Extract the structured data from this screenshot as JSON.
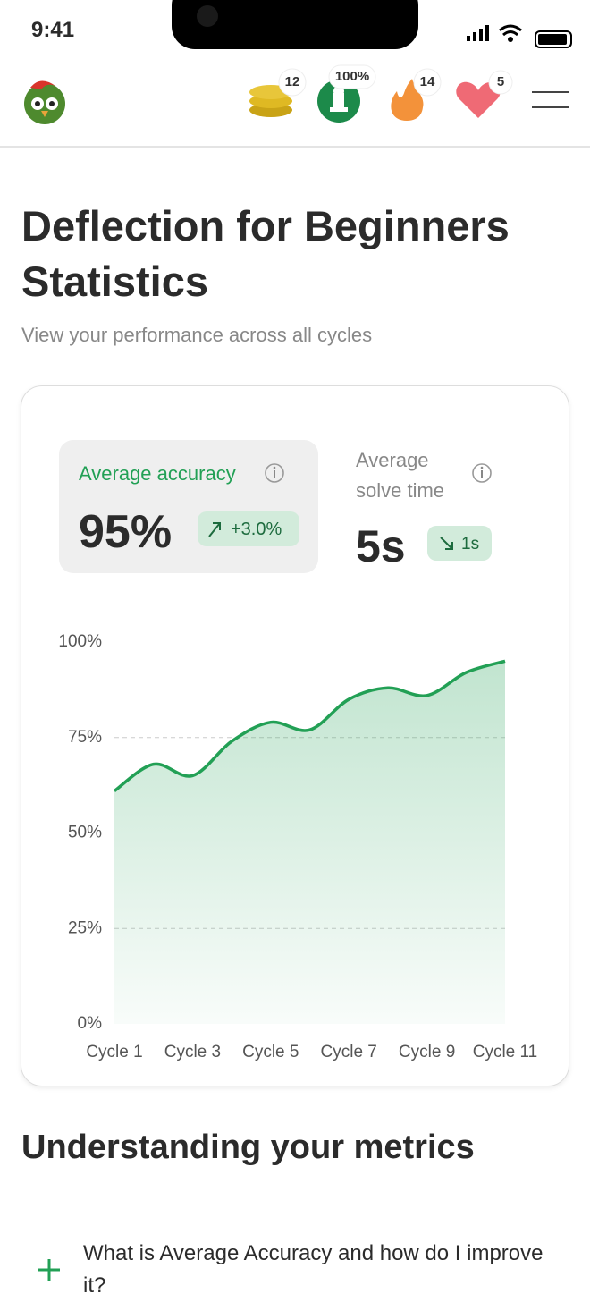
{
  "status_bar": {
    "time": "9:41"
  },
  "header": {
    "badges": [
      "12",
      "100%",
      "14",
      "5"
    ]
  },
  "page": {
    "title": "Deflection for Beginners Statistics",
    "subtitle": "View your performance across all cycles"
  },
  "stats": [
    {
      "label": "Average accuracy",
      "value": "95%",
      "change": "+3.0%"
    },
    {
      "label": "Average solve time",
      "value": "5s",
      "change": "1s"
    }
  ],
  "chart_data": {
    "type": "line",
    "categories": [
      "Cycle 1",
      null,
      "Cycle 3",
      null,
      "Cycle 5",
      null,
      "Cycle 7",
      null,
      "Cycle 9",
      null,
      "Cycle 11"
    ],
    "values": [
      61,
      68,
      65,
      74,
      79,
      77,
      85,
      88,
      86,
      92,
      95
    ],
    "color": "#22a055",
    "ylim": [
      0,
      100
    ],
    "yticks": [
      {
        "value": 0,
        "label": "0%"
      },
      {
        "value": 25,
        "label": "25%"
      },
      {
        "value": 50,
        "label": "50%"
      },
      {
        "value": 75,
        "label": "75%"
      },
      {
        "value": 100,
        "label": "100%"
      }
    ],
    "grid": true
  },
  "section": {
    "title": "Understanding your metrics",
    "faq": [
      "What is Average Accuracy and how do I improve it?"
    ]
  }
}
